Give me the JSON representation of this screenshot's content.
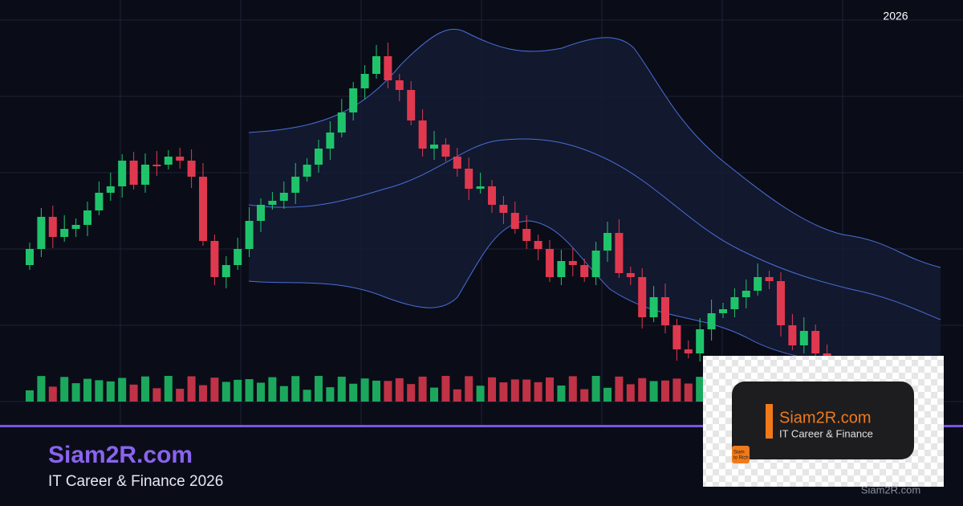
{
  "header": {
    "year": "2026"
  },
  "brand": {
    "title": "Siam2R.com",
    "subtitle": "IT Career & Finance 2026"
  },
  "logo": {
    "title": "Siam2R.com",
    "subtitle": "IT Career & Finance",
    "badge_lines": [
      "Siam",
      "to Rich"
    ]
  },
  "footer": {
    "url": "Siam2R.com"
  }
}
